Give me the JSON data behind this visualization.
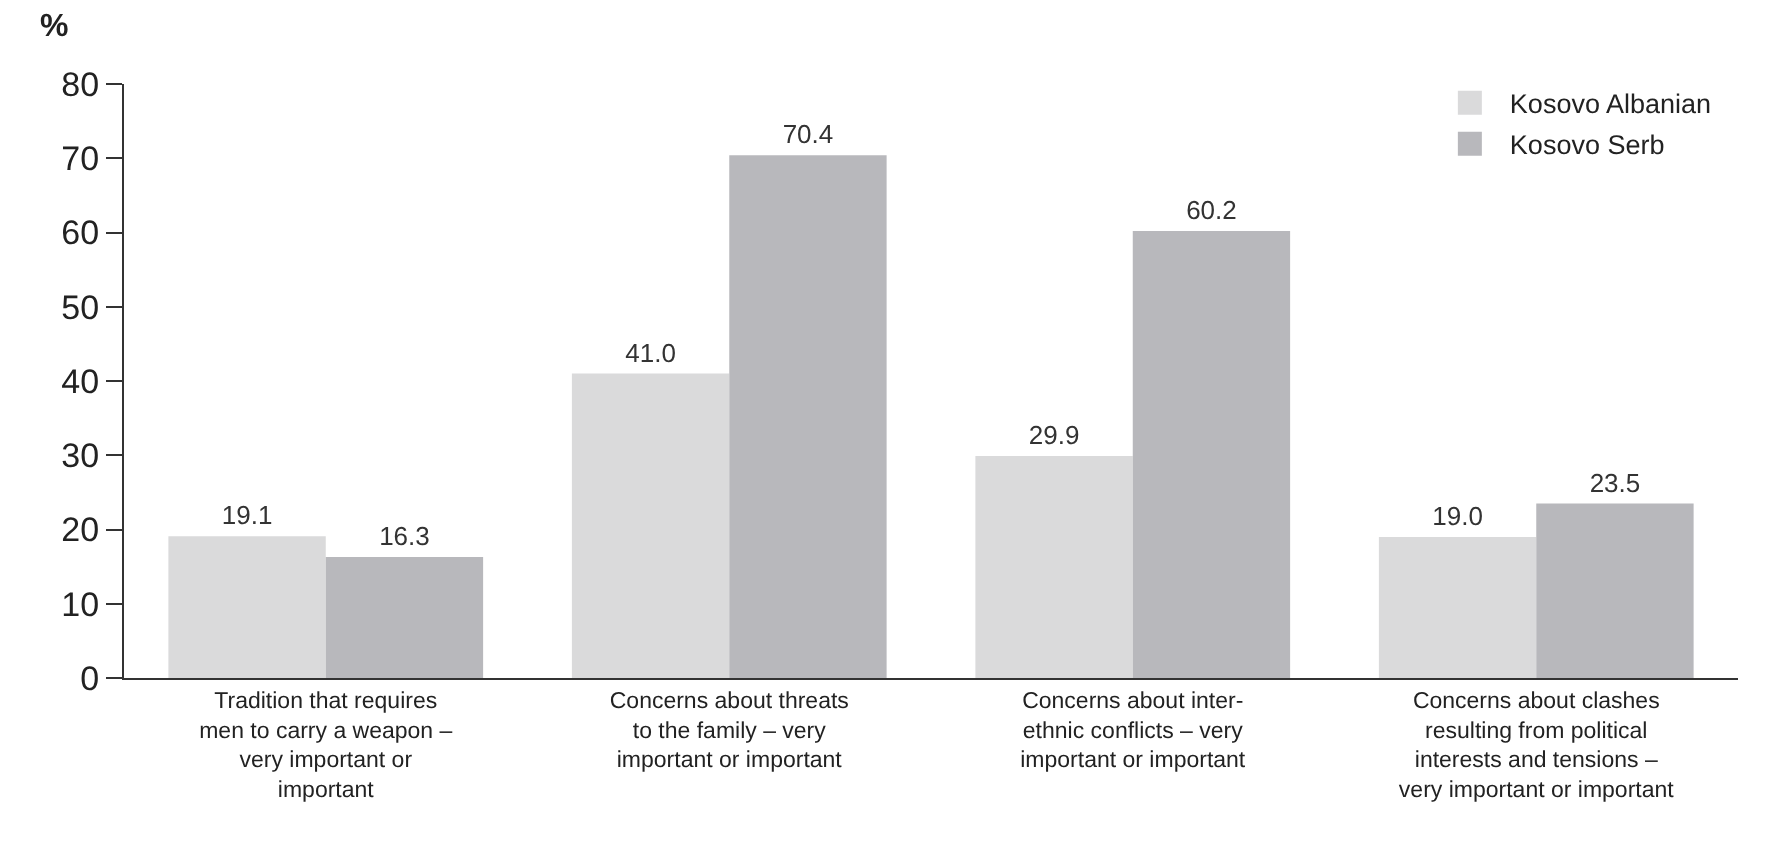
{
  "chart_data": {
    "type": "bar",
    "ylabel": "%",
    "categories": [
      "Tradition that requires\nmen to carry a weapon –\nvery important or\nimportant",
      "Concerns about threats\nto the family – very\nimportant or important",
      "Concerns about inter-\nethnic conflicts – very\nimportant or important",
      "Concerns about clashes\nresulting from political\ninterests and tensions –\nvery important or important"
    ],
    "series": [
      {
        "name": "Kosovo Albanian",
        "color": "#dadadb",
        "values": [
          19.1,
          41.0,
          29.9,
          19.0
        ],
        "value_labels": [
          "19.1",
          "41.0",
          "29.9",
          "19.0"
        ]
      },
      {
        "name": "Kosovo Serb",
        "color": "#b8b8bc",
        "values": [
          16.3,
          70.4,
          60.2,
          23.5
        ],
        "value_labels": [
          "16.3",
          "70.4",
          "60.2",
          "23.5"
        ]
      }
    ],
    "ylim": [
      0,
      80
    ],
    "yticks": [
      0,
      10,
      20,
      30,
      40,
      50,
      60,
      70,
      80
    ],
    "legend": "top right"
  }
}
